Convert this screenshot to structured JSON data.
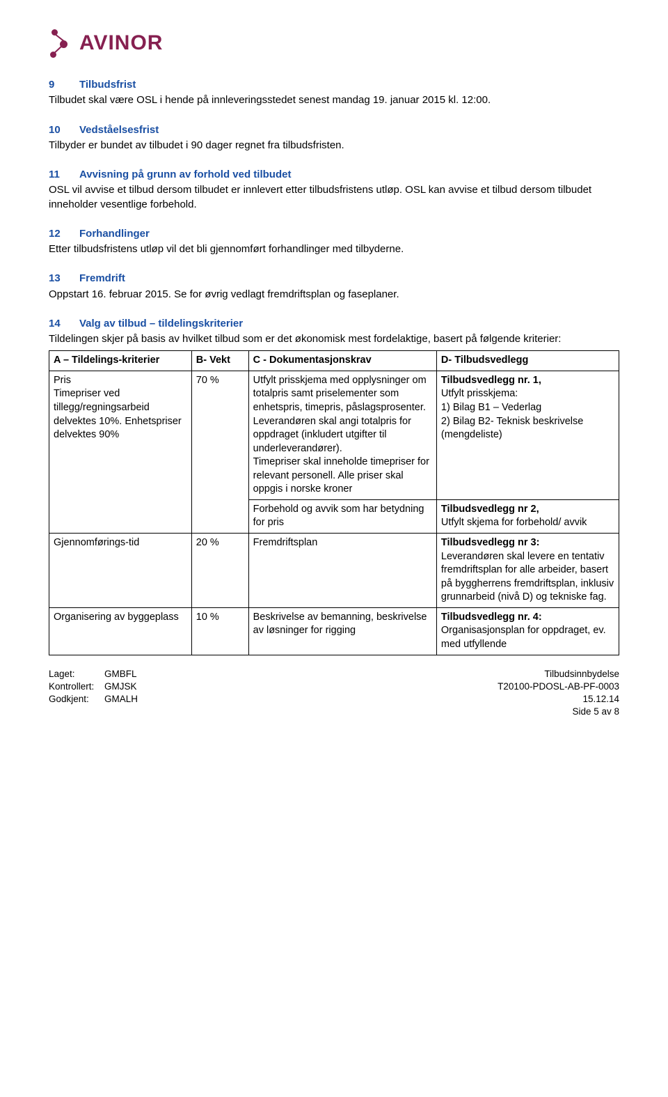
{
  "logo": {
    "brand": "AVINOR",
    "brand_color": "#862050"
  },
  "sections": {
    "s9": {
      "num": "9",
      "title": "Tilbudsfrist",
      "body": "Tilbudet skal være OSL i hende på innleveringsstedet senest mandag 19. januar 2015 kl. 12:00."
    },
    "s10": {
      "num": "10",
      "title": "Vedståelsesfrist",
      "body": "Tilbyder er bundet av tilbudet i 90 dager regnet fra tilbudsfristen."
    },
    "s11": {
      "num": "11",
      "title": "Avvisning på grunn av forhold ved tilbudet",
      "body": "OSL vil avvise et tilbud dersom tilbudet er innlevert etter tilbudsfristens utløp. OSL kan avvise et tilbud dersom tilbudet inneholder vesentlige forbehold."
    },
    "s12": {
      "num": "12",
      "title": "Forhandlinger",
      "body": "Etter tilbudsfristens utløp vil det bli gjennomført forhandlinger med tilbyderne."
    },
    "s13": {
      "num": "13",
      "title": "Fremdrift",
      "body": "Oppstart 16. februar 2015. Se for øvrig vedlagt fremdriftsplan og faseplaner."
    },
    "s14": {
      "num": "14",
      "title": "Valg av tilbud – tildelingskriterier",
      "body": "Tildelingen skjer på basis av hvilket tilbud som er det økonomisk mest fordelaktige, basert på følgende kriterier:"
    }
  },
  "table": {
    "headers": {
      "a": "A – Tildelings-kriterier",
      "b": "B- Vekt",
      "c": "C - Dokumentasjonskrav",
      "d": "D- Tilbudsvedlegg"
    },
    "col_widths": [
      "25%",
      "10%",
      "33%",
      "32%"
    ],
    "rows": [
      {
        "a": "Pris\nTimepriser ved tillegg/regningsarbeid delvektes 10%. Enhetspriser delvektes 90%",
        "b": "70 %",
        "c": "Utfylt prisskjema med opplysninger om totalpris samt priselementer som enhetspris, timepris, påslagsprosenter. Leverandøren skal angi totalpris for oppdraget (inkludert utgifter til underleverandører).\nTimepriser skal inneholde timepriser for relevant personell. Alle priser skal oppgis i norske kroner",
        "d_bold": "Tilbudsvedlegg nr. 1,",
        "d_rest": "Utfylt prisskjema:\n1) Bilag B1 – Vederlag\n2) Bilag B2- Teknisk beskrivelse (mengdeliste)"
      },
      {
        "a": "",
        "b": "",
        "c": "Forbehold og avvik som har betydning for pris",
        "d_bold": "Tilbudsvedlegg nr 2,",
        "d_rest": "Utfylt skjema for forbehold/ avvik"
      },
      {
        "a": "Gjennomførings-tid",
        "b": "20 %",
        "c": "Fremdriftsplan",
        "d_bold": "Tilbudsvedlegg nr 3:",
        "d_rest": "Leverandøren skal levere en tentativ fremdriftsplan for alle arbeider, basert på byggherrens fremdriftsplan, inklusiv grunnarbeid (nivå D) og tekniske fag."
      },
      {
        "a": "Organisering av byggeplass",
        "b": "10 %",
        "c": "Beskrivelse av bemanning, beskrivelse av løsninger for rigging",
        "d_bold": "Tilbudsvedlegg nr. 4:",
        "d_rest": "Organisasjonsplan for oppdraget, ev. med utfyllende"
      }
    ]
  },
  "footer": {
    "left": {
      "r1a": "Laget:",
      "r1b": "GMBFL",
      "r2a": "Kontrollert:",
      "r2b": "GMJSK",
      "r3a": "Godkjent:",
      "r3b": "GMALH"
    },
    "right": {
      "r1": "Tilbudsinnbydelse",
      "r2": "T20100-PDOSL-AB-PF-0003",
      "r3": "15.12.14",
      "r4": "Side 5 av 8"
    }
  }
}
